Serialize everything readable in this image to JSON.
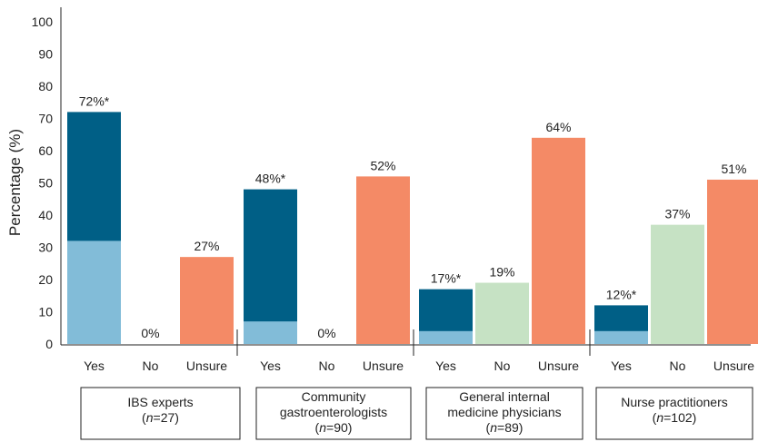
{
  "chart_data": {
    "type": "bar",
    "ylabel": "Percentage (%)",
    "ylim": [
      0,
      100
    ],
    "yticks": [
      0,
      10,
      20,
      30,
      40,
      50,
      60,
      70,
      80,
      90,
      100
    ],
    "colors": {
      "yes_dark": "#005f86",
      "yes_light": "#82bcd8",
      "no": "#c6e2c4",
      "unsure": "#f48a66"
    },
    "groups": [
      {
        "name_lines": [
          "IBS experts"
        ],
        "n_label": "(n=27)",
        "bars": [
          {
            "category": "Yes",
            "value": 72,
            "light_value": 32,
            "label": "72%*"
          },
          {
            "category": "No",
            "value": 0,
            "label": "0%"
          },
          {
            "category": "Unsure",
            "value": 27,
            "label": "27%"
          }
        ]
      },
      {
        "name_lines": [
          "Community",
          "gastroenterologists"
        ],
        "n_label": "(n=90)",
        "bars": [
          {
            "category": "Yes",
            "value": 48,
            "light_value": 7,
            "label": "48%*"
          },
          {
            "category": "No",
            "value": 0,
            "label": "0%"
          },
          {
            "category": "Unsure",
            "value": 52,
            "label": "52%"
          }
        ]
      },
      {
        "name_lines": [
          "General internal",
          "medicine physicians"
        ],
        "n_label": "(n=89)",
        "bars": [
          {
            "category": "Yes",
            "value": 17,
            "light_value": 4,
            "label": "17%*"
          },
          {
            "category": "No",
            "value": 19,
            "label": "19%"
          },
          {
            "category": "Unsure",
            "value": 64,
            "label": "64%"
          }
        ]
      },
      {
        "name_lines": [
          "Nurse practitioners"
        ],
        "n_label": "(n=102)",
        "bars": [
          {
            "category": "Yes",
            "value": 12,
            "light_value": 4,
            "label": "12%*"
          },
          {
            "category": "No",
            "value": 37,
            "label": "37%"
          },
          {
            "category": "Unsure",
            "value": 51,
            "label": "51%"
          }
        ]
      }
    ]
  }
}
